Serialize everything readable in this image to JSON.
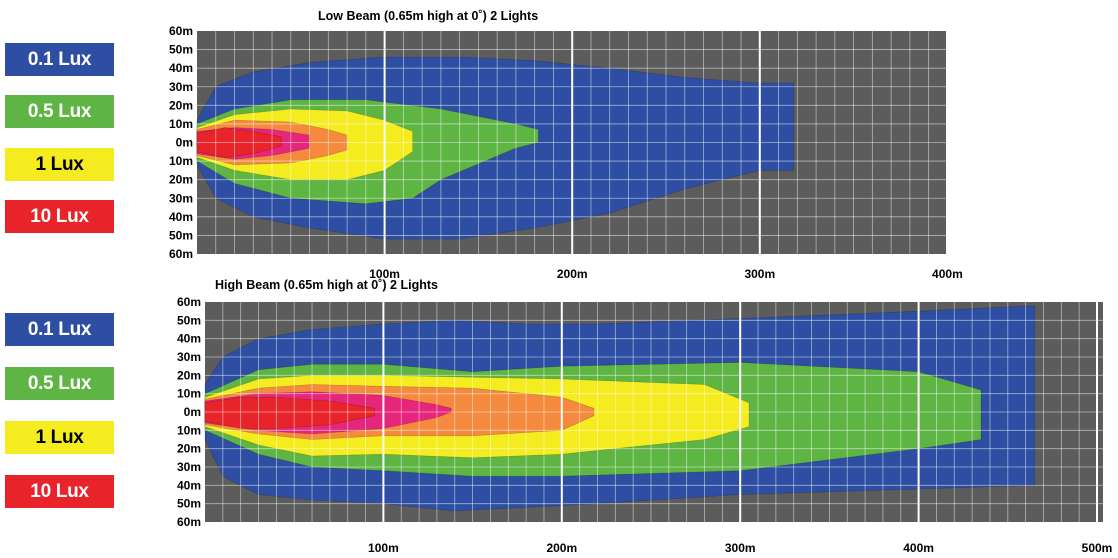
{
  "charts": [
    {
      "title": "Low Beam (0.65m high at 0˚) 2 Lights",
      "legend": [
        {
          "label": "0.1 Lux",
          "color": "#2d4ea2",
          "text_color": "#ffffff"
        },
        {
          "label": "0.5 Lux",
          "color": "#5fb543",
          "text_color": "#ffffff"
        },
        {
          "label": "1 Lux",
          "color": "#f4ec1e",
          "text_color": "#000000"
        },
        {
          "label": "10 Lux",
          "color": "#e8242a",
          "text_color": "#ffffff"
        }
      ]
    },
    {
      "title": "High Beam (0.65m high at 0˚) 2 Lights",
      "legend": [
        {
          "label": "0.1 Lux",
          "color": "#2d4ea2",
          "text_color": "#ffffff"
        },
        {
          "label": "0.5 Lux",
          "color": "#5fb543",
          "text_color": "#ffffff"
        },
        {
          "label": "1 Lux",
          "color": "#f4ec1e",
          "text_color": "#000000"
        },
        {
          "label": "10 Lux",
          "color": "#e8242a",
          "text_color": "#ffffff"
        }
      ]
    }
  ],
  "chart_data": [
    {
      "type": "area",
      "title": "Low Beam (0.65m high at 0˚) 2 Lights",
      "xlabel": "",
      "ylabel": "",
      "xlim": [
        0,
        400
      ],
      "ylim": [
        -60,
        60
      ],
      "x_ticks": [
        "100m",
        "200m",
        "300m",
        "400m"
      ],
      "y_ticks": [
        "60m",
        "50m",
        "40m",
        "30m",
        "20m",
        "10m",
        "0m",
        "10m",
        "20m",
        "30m",
        "40m",
        "50m",
        "60m"
      ],
      "grid": true,
      "background": "#5c5c5c",
      "contour_colors": {
        "0.1 Lux": "#2d4ea2",
        "0.5 Lux": "#5fb543",
        "1 Lux": "#f4ec1e",
        "orange": "#f58a3e",
        "pink": "#e5267a",
        "10 Lux": "#e8242a"
      },
      "series": [
        {
          "name": "0.1 Lux",
          "max_distance": 318,
          "upper": [
            [
              0,
              12
            ],
            [
              10,
              30
            ],
            [
              30,
              38
            ],
            [
              60,
              43
            ],
            [
              100,
              46
            ],
            [
              140,
              46
            ],
            [
              180,
              44
            ],
            [
              220,
              40
            ],
            [
              260,
              35
            ],
            [
              300,
              32
            ],
            [
              318,
              32
            ]
          ],
          "lower": [
            [
              0,
              -12
            ],
            [
              10,
              -30
            ],
            [
              30,
              -40
            ],
            [
              60,
              -46
            ],
            [
              100,
              -52
            ],
            [
              140,
              -52
            ],
            [
              180,
              -46
            ],
            [
              220,
              -38
            ],
            [
              260,
              -25
            ],
            [
              300,
              -15
            ],
            [
              318,
              -15
            ]
          ]
        },
        {
          "name": "0.5 Lux",
          "upper": [
            [
              0,
              10
            ],
            [
              20,
              18
            ],
            [
              50,
              23
            ],
            [
              90,
              23
            ],
            [
              130,
              18
            ],
            [
              170,
              10
            ],
            [
              182,
              7
            ]
          ],
          "lower": [
            [
              0,
              -10
            ],
            [
              20,
              -22
            ],
            [
              50,
              -30
            ],
            [
              90,
              -33
            ],
            [
              115,
              -30
            ],
            [
              130,
              -20
            ],
            [
              170,
              -3
            ],
            [
              182,
              0
            ]
          ]
        },
        {
          "name": "1 Lux",
          "upper": [
            [
              0,
              8
            ],
            [
              20,
              15
            ],
            [
              50,
              18
            ],
            [
              80,
              17
            ],
            [
              100,
              12
            ],
            [
              115,
              6
            ]
          ],
          "lower": [
            [
              0,
              -8
            ],
            [
              20,
              -15
            ],
            [
              50,
              -20
            ],
            [
              80,
              -20
            ],
            [
              100,
              -15
            ],
            [
              115,
              -5
            ]
          ]
        },
        {
          "name": "orange",
          "upper": [
            [
              0,
              7
            ],
            [
              20,
              12
            ],
            [
              50,
              11
            ],
            [
              70,
              7
            ],
            [
              80,
              4
            ]
          ],
          "lower": [
            [
              0,
              -7
            ],
            [
              20,
              -12
            ],
            [
              50,
              -11
            ],
            [
              70,
              -7
            ],
            [
              80,
              -4
            ]
          ]
        },
        {
          "name": "pink",
          "upper": [
            [
              0,
              6
            ],
            [
              20,
              8
            ],
            [
              40,
              7
            ],
            [
              60,
              4
            ]
          ],
          "lower": [
            [
              0,
              -6
            ],
            [
              20,
              -9
            ],
            [
              40,
              -7
            ],
            [
              60,
              -3
            ]
          ]
        },
        {
          "name": "10 Lux",
          "upper": [
            [
              0,
              5
            ],
            [
              15,
              8
            ],
            [
              30,
              6
            ],
            [
              45,
              3
            ]
          ],
          "lower": [
            [
              0,
              -5
            ],
            [
              15,
              -8
            ],
            [
              30,
              -6
            ],
            [
              45,
              -2
            ]
          ]
        }
      ]
    },
    {
      "type": "area",
      "title": "High Beam (0.65m high at 0˚) 2 Lights",
      "xlabel": "",
      "ylabel": "",
      "xlim": [
        0,
        500
      ],
      "ylim": [
        -60,
        60
      ],
      "x_ticks": [
        "100m",
        "200m",
        "300m",
        "400m",
        "500m"
      ],
      "y_ticks": [
        "60m",
        "50m",
        "40m",
        "30m",
        "20m",
        "10m",
        "0m",
        "10m",
        "20m",
        "30m",
        "40m",
        "50m",
        "60m"
      ],
      "grid": true,
      "background": "#5c5c5c",
      "contour_colors": {
        "0.1 Lux": "#2d4ea2",
        "0.5 Lux": "#5fb543",
        "1 Lux": "#f4ec1e",
        "orange": "#f58a3e",
        "pink": "#e5267a",
        "10 Lux": "#e8242a"
      },
      "series": [
        {
          "name": "0.1 Lux",
          "max_distance": 465,
          "upper": [
            [
              0,
              15
            ],
            [
              10,
              30
            ],
            [
              30,
              40
            ],
            [
              60,
              45
            ],
            [
              100,
              48
            ],
            [
              140,
              50
            ],
            [
              180,
              48
            ],
            [
              220,
              48
            ],
            [
              300,
              51
            ],
            [
              400,
              55
            ],
            [
              465,
              58
            ]
          ],
          "lower": [
            [
              0,
              -15
            ],
            [
              10,
              -35
            ],
            [
              30,
              -45
            ],
            [
              60,
              -48
            ],
            [
              100,
              -50
            ],
            [
              140,
              -54
            ],
            [
              180,
              -52
            ],
            [
              220,
              -50
            ],
            [
              300,
              -45
            ],
            [
              400,
              -42
            ],
            [
              465,
              -40
            ]
          ]
        },
        {
          "name": "0.5 Lux",
          "upper": [
            [
              0,
              10
            ],
            [
              30,
              23
            ],
            [
              60,
              26
            ],
            [
              100,
              26
            ],
            [
              150,
              22
            ],
            [
              200,
              25
            ],
            [
              300,
              27
            ],
            [
              400,
              22
            ],
            [
              435,
              12
            ]
          ],
          "lower": [
            [
              0,
              -10
            ],
            [
              30,
              -23
            ],
            [
              60,
              -30
            ],
            [
              100,
              -32
            ],
            [
              150,
              -35
            ],
            [
              200,
              -35
            ],
            [
              300,
              -32
            ],
            [
              400,
              -20
            ],
            [
              435,
              -15
            ]
          ]
        },
        {
          "name": "1 Lux",
          "upper": [
            [
              0,
              8
            ],
            [
              30,
              18
            ],
            [
              60,
              20
            ],
            [
              100,
              20
            ],
            [
              150,
              19
            ],
            [
              200,
              18
            ],
            [
              280,
              15
            ],
            [
              305,
              5
            ]
          ],
          "lower": [
            [
              0,
              -8
            ],
            [
              30,
              -18
            ],
            [
              60,
              -24
            ],
            [
              100,
              -23
            ],
            [
              150,
              -25
            ],
            [
              200,
              -23
            ],
            [
              280,
              -15
            ],
            [
              305,
              -8
            ]
          ]
        },
        {
          "name": "orange",
          "upper": [
            [
              0,
              7
            ],
            [
              30,
              13
            ],
            [
              60,
              15
            ],
            [
              100,
              14
            ],
            [
              150,
              13
            ],
            [
              200,
              8
            ],
            [
              218,
              2
            ]
          ],
          "lower": [
            [
              0,
              -7
            ],
            [
              30,
              -12
            ],
            [
              60,
              -15
            ],
            [
              100,
              -13
            ],
            [
              150,
              -13
            ],
            [
              200,
              -10
            ],
            [
              218,
              -2
            ]
          ]
        },
        {
          "name": "pink",
          "upper": [
            [
              0,
              6
            ],
            [
              30,
              10
            ],
            [
              60,
              11
            ],
            [
              100,
              9
            ],
            [
              130,
              4
            ],
            [
              138,
              2
            ]
          ],
          "lower": [
            [
              0,
              -6
            ],
            [
              30,
              -10
            ],
            [
              60,
              -12
            ],
            [
              100,
              -9
            ],
            [
              130,
              -3
            ],
            [
              138,
              0
            ]
          ]
        },
        {
          "name": "10 Lux",
          "upper": [
            [
              0,
              5
            ],
            [
              20,
              8
            ],
            [
              40,
              8
            ],
            [
              70,
              6
            ],
            [
              95,
              2
            ]
          ],
          "lower": [
            [
              0,
              -5
            ],
            [
              20,
              -9
            ],
            [
              40,
              -9
            ],
            [
              70,
              -7
            ],
            [
              95,
              -2
            ]
          ]
        }
      ]
    }
  ]
}
